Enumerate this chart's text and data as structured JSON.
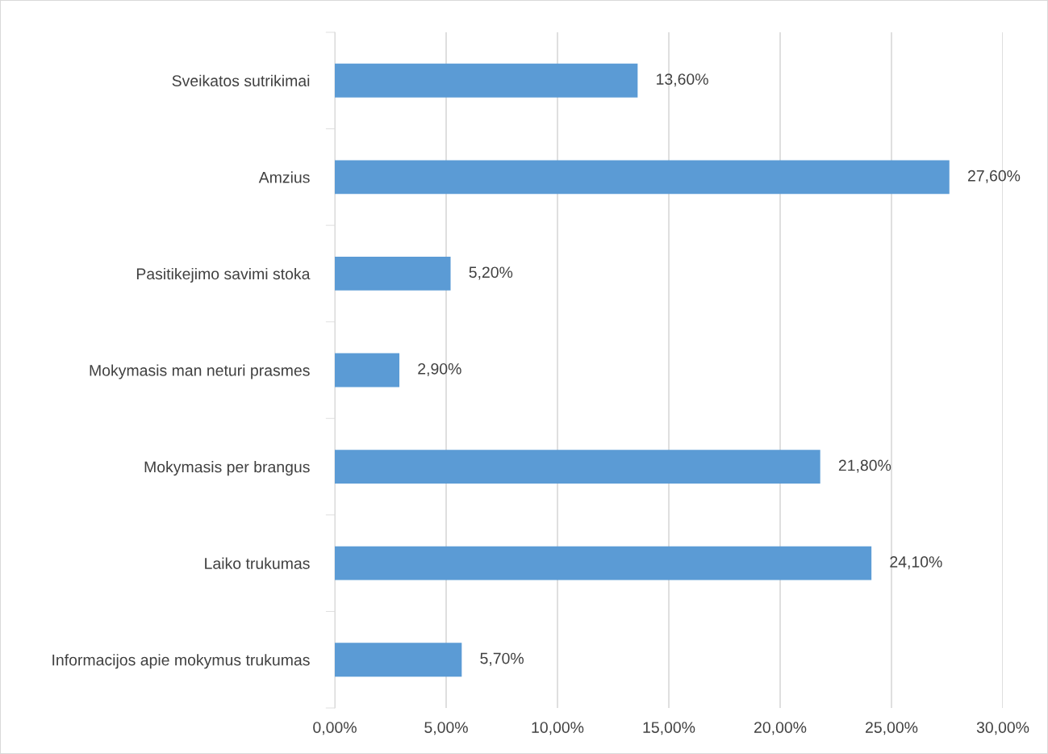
{
  "chart_data": {
    "type": "bar",
    "orientation": "horizontal",
    "categories": [
      "Sveikatos sutrikimai",
      "Amzius",
      "Pasitikejimo savimi stoka",
      "Mokymasis man neturi prasmes",
      "Mokymasis per brangus",
      "Laiko trukumas",
      "Informacijos apie mokymus trukumas"
    ],
    "values": [
      13.6,
      27.6,
      5.2,
      2.9,
      21.8,
      24.1,
      5.7
    ],
    "value_labels": [
      "13,60%",
      "27,60%",
      "5,20%",
      "2,90%",
      "21,80%",
      "24,10%",
      "5,70%"
    ],
    "color": "#5b9bd5",
    "xlim": [
      0,
      30
    ],
    "xticks": [
      {
        "value": 0,
        "label": "0,00%"
      },
      {
        "value": 5,
        "label": "5,00%"
      },
      {
        "value": 10,
        "label": "10,00%"
      },
      {
        "value": 15,
        "label": "15,00%"
      },
      {
        "value": 20,
        "label": "20,00%"
      },
      {
        "value": 25,
        "label": "25,00%"
      },
      {
        "value": 30,
        "label": "30,00%"
      }
    ],
    "grid": "x"
  }
}
